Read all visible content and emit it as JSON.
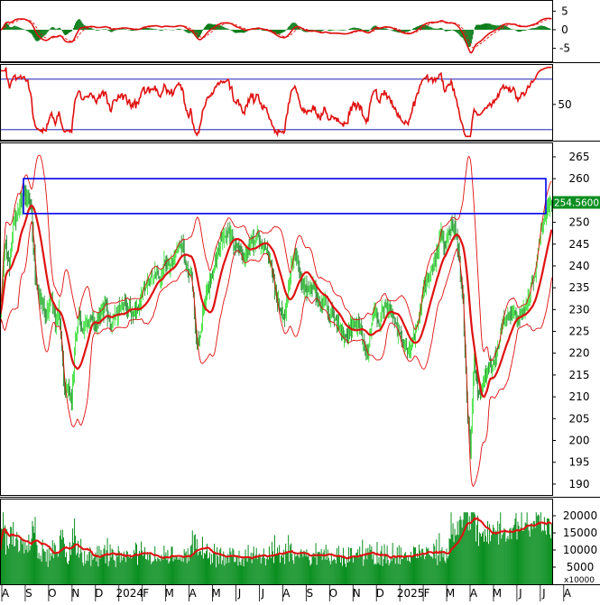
{
  "chart_data": {
    "type": "stock-multi-panel",
    "x_axis": {
      "labels": [
        "A",
        "S",
        "O",
        "N",
        "D",
        "2024",
        "F",
        "M",
        "A",
        "M",
        "J",
        "J",
        "A",
        "S",
        "O",
        "N",
        "D",
        "2025",
        "F",
        "M",
        "A",
        "M",
        "J",
        "J",
        "A"
      ]
    },
    "macd_panel": {
      "ticks": [
        "5",
        "0",
        "-5"
      ],
      "tick_values": [
        5,
        0,
        -5
      ],
      "ylim": [
        -8.5,
        8
      ],
      "colors": {
        "histogram": "#0a7d1a",
        "macd": "#e01010",
        "signal": "#e01010"
      }
    },
    "rsi_panel": {
      "ticks": [
        "50"
      ],
      "tick_values": [
        50
      ],
      "reference_lines": [
        80,
        20
      ],
      "ylim": [
        8,
        98
      ],
      "color": "#e01010"
    },
    "price_panel": {
      "ticks": [
        "265",
        "260",
        "255",
        "250",
        "245",
        "240",
        "235",
        "230",
        "225",
        "220",
        "215",
        "210",
        "205",
        "200",
        "195",
        "190"
      ],
      "tick_values": [
        265,
        260,
        255,
        250,
        245,
        240,
        235,
        230,
        225,
        220,
        215,
        210,
        205,
        200,
        195,
        190
      ],
      "ylim": [
        187.5,
        268.3
      ],
      "last_price_label": "254.5600",
      "resistance_zone": [
        252,
        260
      ],
      "colors": {
        "up_candle": "#22dd22",
        "down_candle": "#0a7d1a",
        "ma20": "#e01010",
        "bands": "#e01010",
        "zone": "#0000ee",
        "price_tag_bg": "#0a8f20",
        "price_tag_text": "#ffffff"
      },
      "close_anchors": [
        [
          0,
          229
        ],
        [
          5,
          245
        ],
        [
          10,
          240
        ],
        [
          14,
          249
        ],
        [
          18,
          252
        ],
        [
          24,
          255
        ],
        [
          30,
          256
        ],
        [
          34,
          252
        ],
        [
          38,
          238
        ],
        [
          44,
          232
        ],
        [
          50,
          228
        ],
        [
          56,
          233
        ],
        [
          60,
          226
        ],
        [
          64,
          230
        ],
        [
          70,
          212
        ],
        [
          74,
          212
        ],
        [
          78,
          209
        ],
        [
          82,
          223
        ],
        [
          86,
          229
        ],
        [
          90,
          225
        ],
        [
          95,
          227
        ],
        [
          100,
          228
        ],
        [
          105,
          226
        ],
        [
          110,
          229
        ],
        [
          115,
          231
        ],
        [
          120,
          226
        ],
        [
          125,
          229
        ],
        [
          130,
          230
        ],
        [
          135,
          231
        ],
        [
          140,
          230
        ],
        [
          145,
          229
        ],
        [
          150,
          230
        ],
        [
          155,
          234
        ],
        [
          160,
          235
        ],
        [
          165,
          237
        ],
        [
          170,
          238
        ],
        [
          175,
          237
        ],
        [
          180,
          241
        ],
        [
          185,
          240
        ],
        [
          190,
          242
        ],
        [
          195,
          245
        ],
        [
          200,
          244
        ],
        [
          205,
          239
        ],
        [
          208,
          240
        ],
        [
          212,
          230
        ],
        [
          215,
          222
        ],
        [
          218,
          224
        ],
        [
          222,
          230
        ],
        [
          226,
          235
        ],
        [
          230,
          236
        ],
        [
          234,
          240
        ],
        [
          238,
          244
        ],
        [
          242,
          246
        ],
        [
          246,
          247
        ],
        [
          250,
          248
        ],
        [
          254,
          246
        ],
        [
          258,
          244
        ],
        [
          262,
          244
        ],
        [
          266,
          242
        ],
        [
          270,
          243
        ],
        [
          274,
          246
        ],
        [
          278,
          245
        ],
        [
          282,
          247
        ],
        [
          286,
          244
        ],
        [
          290,
          244
        ],
        [
          294,
          241
        ],
        [
          298,
          238
        ],
        [
          302,
          233
        ],
        [
          306,
          230
        ],
        [
          310,
          228
        ],
        [
          314,
          232
        ],
        [
          318,
          240
        ],
        [
          322,
          243
        ],
        [
          326,
          240
        ],
        [
          330,
          236
        ],
        [
          334,
          235
        ],
        [
          338,
          235
        ],
        [
          342,
          236
        ],
        [
          346,
          233
        ],
        [
          350,
          230
        ],
        [
          354,
          233
        ],
        [
          358,
          229
        ],
        [
          362,
          229
        ],
        [
          366,
          228
        ],
        [
          370,
          226
        ],
        [
          374,
          225
        ],
        [
          378,
          224
        ],
        [
          382,
          225
        ],
        [
          386,
          227
        ],
        [
          390,
          226
        ],
        [
          394,
          226
        ],
        [
          398,
          222
        ],
        [
          402,
          220
        ],
        [
          406,
          227
        ],
        [
          410,
          230
        ],
        [
          414,
          227
        ],
        [
          418,
          230
        ],
        [
          422,
          231
        ],
        [
          426,
          230
        ],
        [
          430,
          228
        ],
        [
          434,
          225
        ],
        [
          438,
          223
        ],
        [
          442,
          221
        ],
        [
          446,
          220
        ],
        [
          450,
          222
        ],
        [
          454,
          225
        ],
        [
          458,
          229
        ],
        [
          462,
          234
        ],
        [
          466,
          237
        ],
        [
          470,
          238
        ],
        [
          474,
          240
        ],
        [
          478,
          243
        ],
        [
          482,
          248
        ],
        [
          486,
          244
        ],
        [
          490,
          248
        ],
        [
          494,
          250
        ],
        [
          498,
          247
        ],
        [
          502,
          241
        ],
        [
          506,
          232
        ],
        [
          510,
          209
        ],
        [
          514,
          198
        ],
        [
          518,
          218
        ],
        [
          522,
          211
        ],
        [
          526,
          212
        ],
        [
          530,
          215
        ],
        [
          534,
          216
        ],
        [
          538,
          217
        ],
        [
          542,
          219
        ],
        [
          546,
          223
        ],
        [
          550,
          228
        ],
        [
          554,
          228
        ],
        [
          558,
          228
        ],
        [
          562,
          230
        ],
        [
          566,
          227
        ],
        [
          570,
          230
        ],
        [
          574,
          230
        ],
        [
          578,
          233
        ],
        [
          582,
          236
        ],
        [
          586,
          240
        ],
        [
          590,
          246
        ],
        [
          594,
          250
        ],
        [
          598,
          253
        ],
        [
          601,
          254.56
        ]
      ]
    },
    "volume_panel": {
      "ticks": [
        "20000",
        "15000",
        "10000",
        "5000"
      ],
      "tick_values": [
        20000,
        15000,
        10000,
        5000
      ],
      "ylim": [
        0,
        25000
      ],
      "unit_label": "x10000",
      "colors": {
        "bars": "#0a8f20",
        "ma": "#e01010"
      }
    }
  }
}
